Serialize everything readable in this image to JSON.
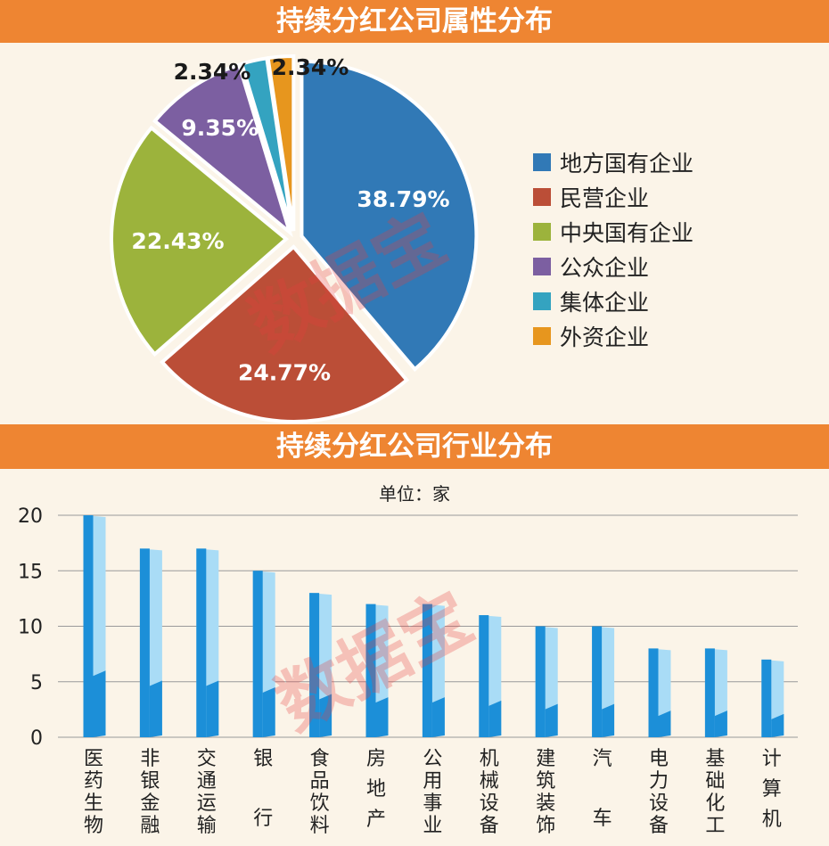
{
  "pie_title": "持续分红公司属性分布",
  "bar_title": "持续分红公司行业分布",
  "unit_label": "单位：家",
  "watermark_text": "数据宝",
  "chart_data": [
    {
      "type": "pie",
      "title": "持续分红公司属性分布",
      "legend_position": "right",
      "slices": [
        {
          "label": "地方国有企业",
          "value": 38.79,
          "value_label": "38.79%",
          "color": "#3179b6"
        },
        {
          "label": "民营企业",
          "value": 24.77,
          "value_label": "24.77%",
          "color": "#bb4e37"
        },
        {
          "label": "中央国有企业",
          "value": 22.43,
          "value_label": "22.43%",
          "color": "#9cb33c"
        },
        {
          "label": "公众企业",
          "value": 9.35,
          "value_label": "9.35%",
          "color": "#7c5fa1"
        },
        {
          "label": "集体企业",
          "value": 2.34,
          "value_label": "2.34%",
          "color": "#34a3c0"
        },
        {
          "label": "外资企业",
          "value": 2.34,
          "value_label": "2.34%",
          "color": "#e7961e"
        }
      ]
    },
    {
      "type": "bar",
      "title": "持续分红公司行业分布",
      "ylabel": "单位：家",
      "ylim": [
        0,
        20
      ],
      "yticks": [
        "0",
        "5",
        "10",
        "15",
        "20"
      ],
      "grid": true,
      "categories": [
        "医药生物",
        "非银金融",
        "交通运输",
        "银行",
        "食品饮料",
        "房地产",
        "公用事业",
        "机械设备",
        "建筑装饰",
        "汽车",
        "电力设备",
        "基础化工",
        "计算机"
      ],
      "values": [
        20,
        17,
        17,
        15,
        13,
        12,
        12,
        11,
        10,
        10,
        8,
        8,
        7
      ],
      "colors": {
        "bar_dark": "#1c8fd8",
        "bar_light": "#a9dcf6"
      }
    }
  ]
}
